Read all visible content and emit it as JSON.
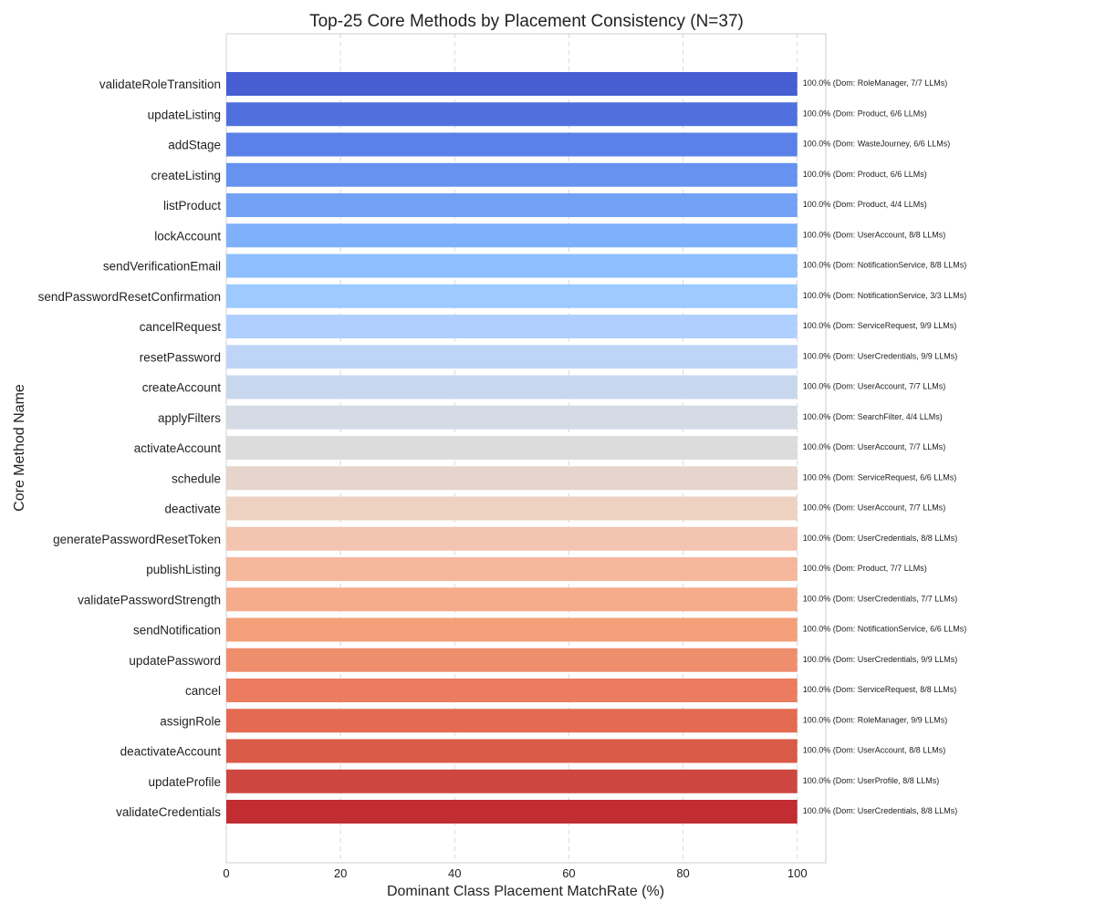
{
  "chart_data": {
    "type": "bar",
    "orientation": "horizontal",
    "title": "Top-25 Core Methods by Placement Consistency (N=37)",
    "xlabel": "Dominant Class Placement MatchRate (%)",
    "ylabel": "Core Method Name",
    "xlim": [
      0,
      105
    ],
    "xticks": [
      0,
      20,
      40,
      60,
      80,
      100
    ],
    "grid": "vertical dashed",
    "colormap": "coolwarm",
    "categories": [
      "validateRoleTransition",
      "updateListing",
      "addStage",
      "createListing",
      "listProduct",
      "lockAccount",
      "sendVerificationEmail",
      "sendPasswordResetConfirmation",
      "cancelRequest",
      "resetPassword",
      "createAccount",
      "applyFilters",
      "activateAccount",
      "schedule",
      "deactivate",
      "generatePasswordResetToken",
      "publishListing",
      "validatePasswordStrength",
      "sendNotification",
      "updatePassword",
      "cancel",
      "assignRole",
      "deactivateAccount",
      "updateProfile",
      "validateCredentials"
    ],
    "values": [
      100,
      100,
      100,
      100,
      100,
      100,
      100,
      100,
      100,
      100,
      100,
      100,
      100,
      100,
      100,
      100,
      100,
      100,
      100,
      100,
      100,
      100,
      100,
      100,
      100
    ],
    "data_labels": [
      "100.0% (Dom: RoleManager, 7/7 LLMs)",
      "100.0% (Dom: Product, 6/6 LLMs)",
      "100.0% (Dom: WasteJourney, 6/6 LLMs)",
      "100.0% (Dom: Product, 6/6 LLMs)",
      "100.0% (Dom: Product, 4/4 LLMs)",
      "100.0% (Dom: UserAccount, 8/8 LLMs)",
      "100.0% (Dom: NotificationService, 8/8 LLMs)",
      "100.0% (Dom: NotificationService, 3/3 LLMs)",
      "100.0% (Dom: ServiceRequest, 9/9 LLMs)",
      "100.0% (Dom: UserCredentials, 9/9 LLMs)",
      "100.0% (Dom: UserAccount, 7/7 LLMs)",
      "100.0% (Dom: SearchFilter, 4/4 LLMs)",
      "100.0% (Dom: UserAccount, 7/7 LLMs)",
      "100.0% (Dom: ServiceRequest, 6/6 LLMs)",
      "100.0% (Dom: UserAccount, 7/7 LLMs)",
      "100.0% (Dom: UserCredentials, 8/8 LLMs)",
      "100.0% (Dom: Product, 7/7 LLMs)",
      "100.0% (Dom: UserCredentials, 7/7 LLMs)",
      "100.0% (Dom: NotificationService, 6/6 LLMs)",
      "100.0% (Dom: UserCredentials, 9/9 LLMs)",
      "100.0% (Dom: ServiceRequest, 8/8 LLMs)",
      "100.0% (Dom: RoleManager, 9/9 LLMs)",
      "100.0% (Dom: UserAccount, 8/8 LLMs)",
      "100.0% (Dom: UserProfile, 8/8 LLMs)",
      "100.0% (Dom: UserCredentials, 8/8 LLMs)"
    ],
    "colors": [
      "#465ed2",
      "#5070de",
      "#5b81e8",
      "#6692f0",
      "#72a1f6",
      "#7fb0fb",
      "#8ebefe",
      "#9ecaff",
      "#aecfff",
      "#bfd5f8",
      "#c8d7ee",
      "#d4dbe5",
      "#dddcdc",
      "#e5d5cc",
      "#edd2c2",
      "#f3c4b0",
      "#f5b89d",
      "#f5ac8b",
      "#f39f7a",
      "#ef8e6d",
      "#eb7c60",
      "#e46b52",
      "#d95a47",
      "#cd4640",
      "#c22c33"
    ]
  }
}
